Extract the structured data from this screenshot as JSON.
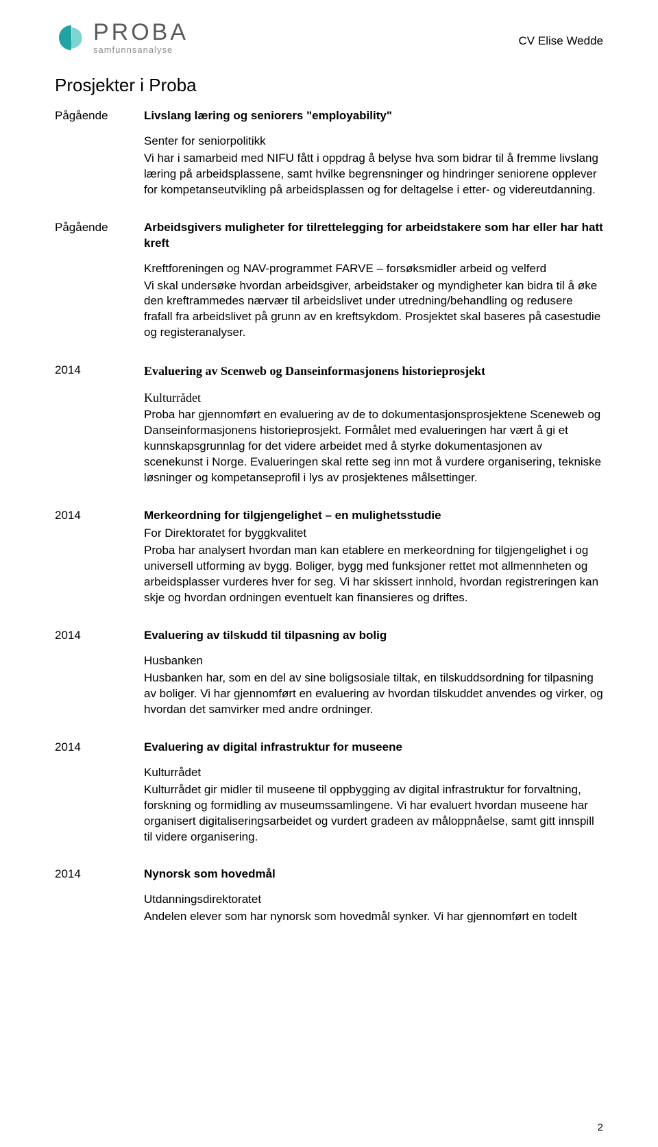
{
  "header": {
    "logo_word": "PROBA",
    "logo_sub": "samfunnsanalyse",
    "cv_label": "CV Elise Wedde",
    "logo_colors": {
      "left": "#1fa3a3",
      "right": "#7fd3d3"
    }
  },
  "section_title": "Prosjekter i Proba",
  "entries": [
    {
      "year": "Pågående",
      "title": "Livslang læring og seniorers \"employability\"",
      "title_style": "sans",
      "org": "Senter for seniorpolitikk",
      "org_style": "sans",
      "desc": "Vi har i samarbeid med NIFU fått i oppdrag å belyse hva som bidrar til å fremme livslang læring på arbeidsplassene, samt hvilke begrensninger og hindringer seniorene opplever for kompetanseutvikling på arbeidsplassen og for deltagelse i etter- og videreutdanning."
    },
    {
      "year": "Pågående",
      "title": "Arbeidsgivers muligheter for tilrettelegging for arbeidstakere som har eller har hatt kreft",
      "title_style": "sans",
      "org": "Kreftforeningen og NAV-programmet FARVE – forsøksmidler arbeid og velferd",
      "org_style": "sans",
      "desc": "Vi skal undersøke hvordan arbeidsgiver, arbeidstaker og myndigheter kan bidra til å øke den kreftrammedes nærvær til arbeidslivet under utredning/behandling og redusere frafall fra arbeidslivet på grunn av en kreftsykdom. Prosjektet skal baseres på casestudie og registeranalyser."
    },
    {
      "year": "2014",
      "title": "Evaluering av Scenweb og Danseinformasjonens historieprosjekt",
      "title_style": "serif",
      "org": "Kulturrådet",
      "org_style": "serif",
      "desc": "Proba har gjennomført en evaluering av de to dokumentasjonsprosjektene Sceneweb og Danseinformasjonens historieprosjekt. Formålet med evalueringen har vært å gi et kunnskapsgrunnlag for det videre arbeidet med å styrke dokumentasjonen av scenekunst i Norge. Evalueringen skal rette seg inn mot å vurdere organisering, tekniske løsninger og kompetanseprofil i lys av prosjektenes målsettinger."
    },
    {
      "year": "2014",
      "title": "Merkeordning for tilgjengelighet – en mulighetsstudie",
      "title_style": "sans",
      "org": "For Direktoratet for byggkvalitet",
      "org_style": "sans-tight",
      "desc": "Proba har analysert hvordan man kan etablere en merkeordning for tilgjengelighet i og universell utforming av bygg. Boliger, bygg med funksjoner rettet mot allmennheten og arbeidsplasser vurderes hver for seg. Vi har skissert innhold, hvordan registreringen kan skje og hvordan ordningen eventuelt kan finansieres og driftes."
    },
    {
      "year": "2014",
      "title": "Evaluering av tilskudd til tilpasning av bolig",
      "title_style": "sans",
      "org": "Husbanken",
      "org_style": "sans",
      "desc": "Husbanken har, som en del av sine boligsosiale tiltak, en tilskuddsordning for tilpasning av boliger. Vi har gjennomført en evaluering av hvordan tilskuddet anvendes og virker, og hvordan det samvirker med andre ordninger."
    },
    {
      "year": "2014",
      "title": "Evaluering av digital infrastruktur for museene",
      "title_style": "sans",
      "org": "Kulturrådet",
      "org_style": "sans",
      "desc": "Kulturrådet gir midler til museene til oppbygging av digital infrastruktur for forvaltning, forskning og formidling av museumssamlingene. Vi har evaluert hvordan museene har organisert digitaliseringsarbeidet og vurdert gradeen av måloppnåelse, samt gitt innspill til videre organisering."
    },
    {
      "year": "2014",
      "title": "Nynorsk som hovedmål",
      "title_style": "sans",
      "org": "Utdanningsdirektoratet",
      "org_style": "sans",
      "desc": "Andelen elever som har nynorsk som hovedmål synker. Vi har gjennomført en todelt"
    }
  ],
  "page_number": "2",
  "style": {
    "body_font_size": 17,
    "section_title_size": 26,
    "background": "#ffffff",
    "text_color": "#000000"
  }
}
